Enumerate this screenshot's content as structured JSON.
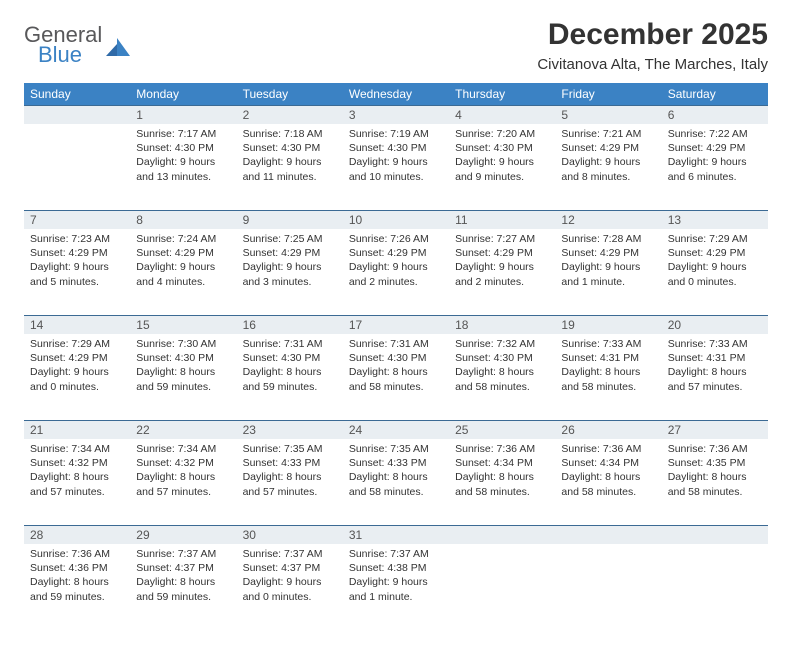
{
  "logo": {
    "line1": "General",
    "line2": "Blue"
  },
  "header": {
    "title": "December 2025",
    "location": "Civitanova Alta, The Marches, Italy"
  },
  "colors": {
    "header_bg": "#3b82c4",
    "header_text": "#ffffff",
    "daynum_bg": "#e9eef2",
    "daynum_border": "#3b6a94",
    "text": "#333333",
    "logo_gray": "#58585a",
    "logo_blue": "#3b82c4"
  },
  "weekdays": [
    "Sunday",
    "Monday",
    "Tuesday",
    "Wednesday",
    "Thursday",
    "Friday",
    "Saturday"
  ],
  "weeks": [
    {
      "nums": [
        "",
        "1",
        "2",
        "3",
        "4",
        "5",
        "6"
      ],
      "cells": [
        null,
        {
          "sunrise": "Sunrise: 7:17 AM",
          "sunset": "Sunset: 4:30 PM",
          "dl1": "Daylight: 9 hours",
          "dl2": "and 13 minutes."
        },
        {
          "sunrise": "Sunrise: 7:18 AM",
          "sunset": "Sunset: 4:30 PM",
          "dl1": "Daylight: 9 hours",
          "dl2": "and 11 minutes."
        },
        {
          "sunrise": "Sunrise: 7:19 AM",
          "sunset": "Sunset: 4:30 PM",
          "dl1": "Daylight: 9 hours",
          "dl2": "and 10 minutes."
        },
        {
          "sunrise": "Sunrise: 7:20 AM",
          "sunset": "Sunset: 4:30 PM",
          "dl1": "Daylight: 9 hours",
          "dl2": "and 9 minutes."
        },
        {
          "sunrise": "Sunrise: 7:21 AM",
          "sunset": "Sunset: 4:29 PM",
          "dl1": "Daylight: 9 hours",
          "dl2": "and 8 minutes."
        },
        {
          "sunrise": "Sunrise: 7:22 AM",
          "sunset": "Sunset: 4:29 PM",
          "dl1": "Daylight: 9 hours",
          "dl2": "and 6 minutes."
        }
      ]
    },
    {
      "nums": [
        "7",
        "8",
        "9",
        "10",
        "11",
        "12",
        "13"
      ],
      "cells": [
        {
          "sunrise": "Sunrise: 7:23 AM",
          "sunset": "Sunset: 4:29 PM",
          "dl1": "Daylight: 9 hours",
          "dl2": "and 5 minutes."
        },
        {
          "sunrise": "Sunrise: 7:24 AM",
          "sunset": "Sunset: 4:29 PM",
          "dl1": "Daylight: 9 hours",
          "dl2": "and 4 minutes."
        },
        {
          "sunrise": "Sunrise: 7:25 AM",
          "sunset": "Sunset: 4:29 PM",
          "dl1": "Daylight: 9 hours",
          "dl2": "and 3 minutes."
        },
        {
          "sunrise": "Sunrise: 7:26 AM",
          "sunset": "Sunset: 4:29 PM",
          "dl1": "Daylight: 9 hours",
          "dl2": "and 2 minutes."
        },
        {
          "sunrise": "Sunrise: 7:27 AM",
          "sunset": "Sunset: 4:29 PM",
          "dl1": "Daylight: 9 hours",
          "dl2": "and 2 minutes."
        },
        {
          "sunrise": "Sunrise: 7:28 AM",
          "sunset": "Sunset: 4:29 PM",
          "dl1": "Daylight: 9 hours",
          "dl2": "and 1 minute."
        },
        {
          "sunrise": "Sunrise: 7:29 AM",
          "sunset": "Sunset: 4:29 PM",
          "dl1": "Daylight: 9 hours",
          "dl2": "and 0 minutes."
        }
      ]
    },
    {
      "nums": [
        "14",
        "15",
        "16",
        "17",
        "18",
        "19",
        "20"
      ],
      "cells": [
        {
          "sunrise": "Sunrise: 7:29 AM",
          "sunset": "Sunset: 4:29 PM",
          "dl1": "Daylight: 9 hours",
          "dl2": "and 0 minutes."
        },
        {
          "sunrise": "Sunrise: 7:30 AM",
          "sunset": "Sunset: 4:30 PM",
          "dl1": "Daylight: 8 hours",
          "dl2": "and 59 minutes."
        },
        {
          "sunrise": "Sunrise: 7:31 AM",
          "sunset": "Sunset: 4:30 PM",
          "dl1": "Daylight: 8 hours",
          "dl2": "and 59 minutes."
        },
        {
          "sunrise": "Sunrise: 7:31 AM",
          "sunset": "Sunset: 4:30 PM",
          "dl1": "Daylight: 8 hours",
          "dl2": "and 58 minutes."
        },
        {
          "sunrise": "Sunrise: 7:32 AM",
          "sunset": "Sunset: 4:30 PM",
          "dl1": "Daylight: 8 hours",
          "dl2": "and 58 minutes."
        },
        {
          "sunrise": "Sunrise: 7:33 AM",
          "sunset": "Sunset: 4:31 PM",
          "dl1": "Daylight: 8 hours",
          "dl2": "and 58 minutes."
        },
        {
          "sunrise": "Sunrise: 7:33 AM",
          "sunset": "Sunset: 4:31 PM",
          "dl1": "Daylight: 8 hours",
          "dl2": "and 57 minutes."
        }
      ]
    },
    {
      "nums": [
        "21",
        "22",
        "23",
        "24",
        "25",
        "26",
        "27"
      ],
      "cells": [
        {
          "sunrise": "Sunrise: 7:34 AM",
          "sunset": "Sunset: 4:32 PM",
          "dl1": "Daylight: 8 hours",
          "dl2": "and 57 minutes."
        },
        {
          "sunrise": "Sunrise: 7:34 AM",
          "sunset": "Sunset: 4:32 PM",
          "dl1": "Daylight: 8 hours",
          "dl2": "and 57 minutes."
        },
        {
          "sunrise": "Sunrise: 7:35 AM",
          "sunset": "Sunset: 4:33 PM",
          "dl1": "Daylight: 8 hours",
          "dl2": "and 57 minutes."
        },
        {
          "sunrise": "Sunrise: 7:35 AM",
          "sunset": "Sunset: 4:33 PM",
          "dl1": "Daylight: 8 hours",
          "dl2": "and 58 minutes."
        },
        {
          "sunrise": "Sunrise: 7:36 AM",
          "sunset": "Sunset: 4:34 PM",
          "dl1": "Daylight: 8 hours",
          "dl2": "and 58 minutes."
        },
        {
          "sunrise": "Sunrise: 7:36 AM",
          "sunset": "Sunset: 4:34 PM",
          "dl1": "Daylight: 8 hours",
          "dl2": "and 58 minutes."
        },
        {
          "sunrise": "Sunrise: 7:36 AM",
          "sunset": "Sunset: 4:35 PM",
          "dl1": "Daylight: 8 hours",
          "dl2": "and 58 minutes."
        }
      ]
    },
    {
      "nums": [
        "28",
        "29",
        "30",
        "31",
        "",
        "",
        ""
      ],
      "cells": [
        {
          "sunrise": "Sunrise: 7:36 AM",
          "sunset": "Sunset: 4:36 PM",
          "dl1": "Daylight: 8 hours",
          "dl2": "and 59 minutes."
        },
        {
          "sunrise": "Sunrise: 7:37 AM",
          "sunset": "Sunset: 4:37 PM",
          "dl1": "Daylight: 8 hours",
          "dl2": "and 59 minutes."
        },
        {
          "sunrise": "Sunrise: 7:37 AM",
          "sunset": "Sunset: 4:37 PM",
          "dl1": "Daylight: 9 hours",
          "dl2": "and 0 minutes."
        },
        {
          "sunrise": "Sunrise: 7:37 AM",
          "sunset": "Sunset: 4:38 PM",
          "dl1": "Daylight: 9 hours",
          "dl2": "and 1 minute."
        },
        null,
        null,
        null
      ]
    }
  ]
}
